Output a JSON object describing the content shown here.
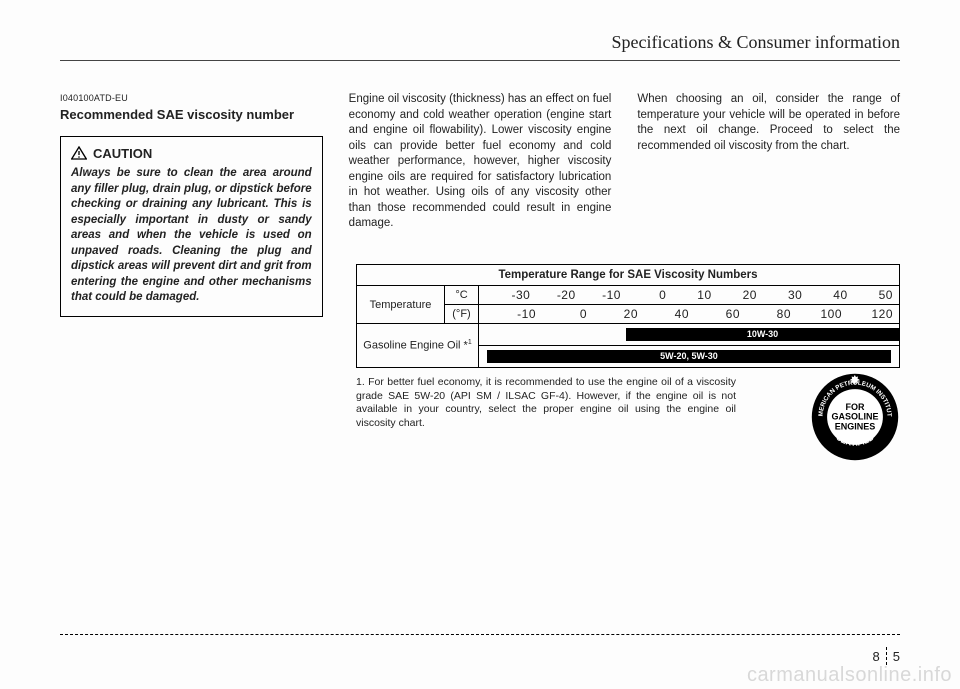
{
  "section_title": "Specifications & Consumer information",
  "doc_code": "I040100ATD-EU",
  "heading": "Recommended SAE viscosity number",
  "caution": {
    "label": "CAUTION",
    "text": "Always be sure to clean the area around any filler plug, drain plug, or dipstick before checking or draining any lubricant. This is especially important in dusty or sandy areas and when the vehicle is used on unpaved roads. Cleaning the plug and dipstick areas will prevent dirt and grit from entering the engine and other mechanisms that could be damaged."
  },
  "col2_text": "Engine oil viscosity (thickness) has an effect on fuel economy and cold weather operation (engine start and engine oil flowability). Lower viscosity engine oils can provide better fuel economy and cold weather performance, however, higher viscosity engine oils are required for satisfactory lubrication in hot weather. Using oils of any viscosity other than those recommended could result in engine damage.",
  "col3_text": "When choosing an oil, consider the range of temperature your vehicle will be operated in before the next oil change. Proceed to select the recommended oil viscosity from the chart.",
  "table": {
    "title": "Temperature Range for SAE Viscosity Numbers",
    "temp_label": "Temperature",
    "unit_c": "°C",
    "unit_f": "(°F)",
    "row_c": [
      "-30",
      "-20",
      "-10",
      "0",
      "10",
      "20",
      "30",
      "40",
      "50"
    ],
    "row_f": [
      "-10",
      "0",
      "20",
      "40",
      "60",
      "80",
      "100",
      "120"
    ],
    "oil_label": "Gasoline Engine Oil *",
    "oil_sup": "1",
    "bar1": {
      "label": "10W-30",
      "left_pct": 35,
      "width_pct": 65
    },
    "bar2": {
      "label": "5W-20, 5W-30",
      "left_pct": 2,
      "width_pct": 96
    }
  },
  "footnote": "1. For better fuel economy, it is recommended to use the engine oil of a viscosity grade SAE 5W-20 (API SM / ILSAC GF-4). However, if the engine oil is not available in your country, select the proper engine oil using the engine oil viscosity chart.",
  "seal": {
    "outer_top": "AMERICAN PETROLEUM INSTITUTE",
    "outer_bottom": "CERTIFIED",
    "inner1": "FOR",
    "inner2": "GASOLINE",
    "inner3": "ENGINES"
  },
  "page_num_left": "8",
  "page_num_right": "5",
  "watermark": "carmanualsonline.info",
  "colors": {
    "bg": "#fdfdfd",
    "text": "#222222",
    "bar_bg": "#000000",
    "bar_text": "#ffffff",
    "watermark": "#d8d8d8"
  }
}
